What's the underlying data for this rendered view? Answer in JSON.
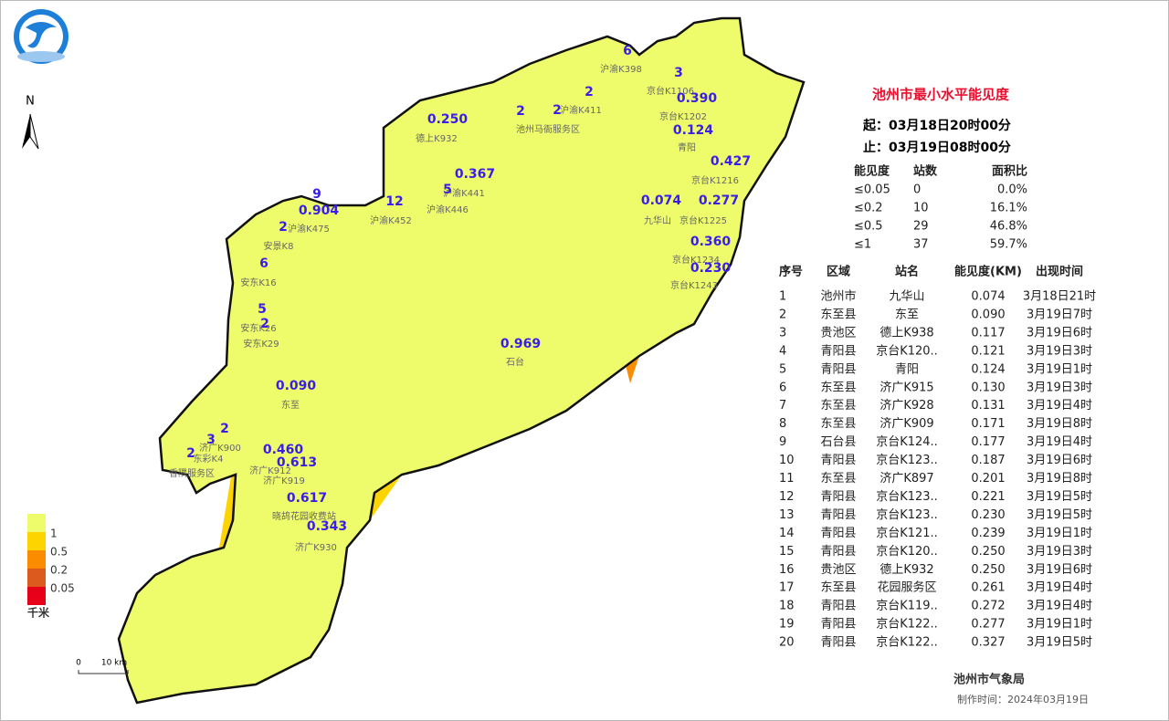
{
  "north": "N",
  "title": "池州市最小水平能见度",
  "start": "起：03月18日20时00分",
  "end": "止：03月19日08时00分",
  "summary": {
    "header": [
      "能见度",
      "站数",
      "面积比"
    ],
    "rows": [
      [
        "≤0.05",
        "0",
        "0.0%"
      ],
      [
        "≤0.2",
        "10",
        "16.1%"
      ],
      [
        "≤0.5",
        "29",
        "46.8%"
      ],
      [
        "≤1",
        "37",
        "59.7%"
      ]
    ]
  },
  "ranking": {
    "header": [
      "序号",
      "区域",
      "站名",
      "能见度(KM)",
      "出现时间"
    ],
    "rows": [
      [
        "1",
        "池州市",
        "九华山",
        "0.074",
        "3月18日21时"
      ],
      [
        "2",
        "东至县",
        "东至",
        "0.090",
        "3月19日7时"
      ],
      [
        "3",
        "贵池区",
        "德上K938",
        "0.117",
        "3月19日6时"
      ],
      [
        "4",
        "青阳县",
        "京台K120..",
        "0.121",
        "3月19日3时"
      ],
      [
        "5",
        "青阳县",
        "青阳",
        "0.124",
        "3月19日1时"
      ],
      [
        "6",
        "东至县",
        "济广K915",
        "0.130",
        "3月19日3时"
      ],
      [
        "7",
        "东至县",
        "济广K928",
        "0.131",
        "3月19日4时"
      ],
      [
        "8",
        "东至县",
        "济广K909",
        "0.171",
        "3月19日8时"
      ],
      [
        "9",
        "石台县",
        "京台K124..",
        "0.177",
        "3月19日4时"
      ],
      [
        "10",
        "青阳县",
        "京台K123..",
        "0.187",
        "3月19日6时"
      ],
      [
        "11",
        "东至县",
        "济广K897",
        "0.201",
        "3月19日8时"
      ],
      [
        "12",
        "青阳县",
        "京台K123..",
        "0.221",
        "3月19日5时"
      ],
      [
        "13",
        "青阳县",
        "京台K123..",
        "0.230",
        "3月19日5时"
      ],
      [
        "14",
        "青阳县",
        "京台K121..",
        "0.239",
        "3月19日1时"
      ],
      [
        "15",
        "青阳县",
        "京台K120..",
        "0.250",
        "3月19日3时"
      ],
      [
        "16",
        "贵池区",
        "德上K932",
        "0.250",
        "3月19日6时"
      ],
      [
        "17",
        "东至县",
        "花园服务区",
        "0.261",
        "3月19日4时"
      ],
      [
        "18",
        "青阳县",
        "京台K119..",
        "0.272",
        "3月19日4时"
      ],
      [
        "19",
        "青阳县",
        "京台K122..",
        "0.277",
        "3月19日1时"
      ],
      [
        "20",
        "青阳县",
        "京台K122..",
        "0.327",
        "3月19日5时"
      ]
    ]
  },
  "legend": {
    "labels": [
      "1",
      "0.5",
      "0.2",
      "0.05"
    ],
    "unit": "千米"
  },
  "scale": {
    "labels": [
      "0",
      "10 km"
    ]
  },
  "map_values": [
    "0.250",
    "0.367",
    "2",
    "2",
    "2",
    "6",
    "3",
    "0.390",
    "0.124",
    "0.427",
    "0.074",
    "0.277",
    "0.360",
    "0.230",
    "12",
    "5",
    "9",
    "0.904",
    "2",
    "6",
    "5",
    "2",
    "0.969",
    "0.090",
    "2",
    "3",
    "2",
    "0.460",
    "0.613",
    "0.617",
    "0.343"
  ],
  "map_names": [
    "德上K932",
    "池州马衙服务区",
    "沪渝K411",
    "沪渝K398",
    "京台K1106",
    "京台K1202",
    "青阳",
    "京台K1216",
    "九华山",
    "京台K1225",
    "京台K1234",
    "京台K1243",
    "沪渝K441",
    "沪渝K446",
    "沪渝K452",
    "沪渝K475",
    "安景K8",
    "安东K16",
    "安东K26",
    "安东K29",
    "石台",
    "东至",
    "济广K900",
    "东彩K4",
    "香隅服务区",
    "济广K912",
    "济广K919",
    "晓鸪花园收费站",
    "济广K930"
  ],
  "footer": {
    "agency": "池州市气象局",
    "made": "制作时间：2024年03月19日"
  }
}
